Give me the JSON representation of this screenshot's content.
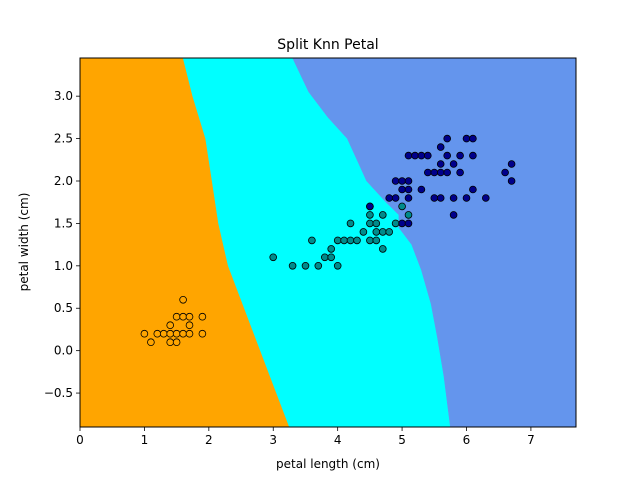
{
  "chart_data": {
    "type": "scatter",
    "title": "Split Knn Petal",
    "xlabel": "petal length (cm)",
    "ylabel": "petal width (cm)",
    "xlim": [
      0,
      7.7
    ],
    "ylim": [
      -0.9,
      3.45
    ],
    "xticks": [
      0,
      1,
      2,
      3,
      4,
      5,
      6,
      7
    ],
    "xtick_labels": [
      "0",
      "1",
      "2",
      "3",
      "4",
      "5",
      "6",
      "7"
    ],
    "yticks": [
      -0.5,
      0.0,
      0.5,
      1.0,
      1.5,
      2.0,
      2.5,
      3.0
    ],
    "ytick_labels": [
      "−0.5",
      "0.0",
      "0.5",
      "1.0",
      "1.5",
      "2.0",
      "2.5",
      "3.0"
    ],
    "grid": false,
    "colors": {
      "region_0": "#ffa500",
      "region_1": "#00ffff",
      "region_2": "#6495ed",
      "point_0": "#ffa500",
      "point_1": "#008b8b",
      "point_2": "#00008b",
      "edge": "#000000"
    },
    "decision_regions": [
      {
        "class_index": 0,
        "polygon": [
          [
            0,
            3.45
          ],
          [
            1.6,
            3.45
          ],
          [
            1.75,
            3.0
          ],
          [
            1.95,
            2.5
          ],
          [
            2.05,
            2.0
          ],
          [
            2.15,
            1.5
          ],
          [
            2.3,
            1.0
          ],
          [
            2.55,
            0.5
          ],
          [
            2.8,
            0.0
          ],
          [
            3.05,
            -0.5
          ],
          [
            3.25,
            -0.9
          ],
          [
            0,
            -0.9
          ]
        ]
      },
      {
        "class_index": 1,
        "polygon": [
          [
            1.6,
            3.45
          ],
          [
            3.3,
            3.45
          ],
          [
            3.55,
            3.05
          ],
          [
            3.85,
            2.75
          ],
          [
            4.15,
            2.5
          ],
          [
            4.3,
            2.25
          ],
          [
            4.45,
            2.0
          ],
          [
            4.75,
            1.75
          ],
          [
            4.95,
            1.6
          ],
          [
            4.95,
            1.45
          ],
          [
            5.15,
            1.25
          ],
          [
            5.3,
            0.95
          ],
          [
            5.45,
            0.55
          ],
          [
            5.55,
            0.15
          ],
          [
            5.65,
            -0.3
          ],
          [
            5.75,
            -0.9
          ],
          [
            3.25,
            -0.9
          ],
          [
            3.05,
            -0.5
          ],
          [
            2.8,
            0.0
          ],
          [
            2.55,
            0.5
          ],
          [
            2.3,
            1.0
          ],
          [
            2.15,
            1.5
          ],
          [
            2.05,
            2.0
          ],
          [
            1.95,
            2.5
          ],
          [
            1.75,
            3.0
          ]
        ]
      },
      {
        "class_index": 2,
        "polygon": [
          [
            3.3,
            3.45
          ],
          [
            7.7,
            3.45
          ],
          [
            7.7,
            -0.9
          ],
          [
            5.75,
            -0.9
          ],
          [
            5.65,
            -0.3
          ],
          [
            5.55,
            0.15
          ],
          [
            5.45,
            0.55
          ],
          [
            5.3,
            0.95
          ],
          [
            5.15,
            1.25
          ],
          [
            4.95,
            1.45
          ],
          [
            4.95,
            1.6
          ],
          [
            4.75,
            1.75
          ],
          [
            4.45,
            2.0
          ],
          [
            4.3,
            2.25
          ],
          [
            4.15,
            2.5
          ],
          [
            3.85,
            2.75
          ],
          [
            3.55,
            3.05
          ]
        ]
      }
    ],
    "series": [
      {
        "class_index": 0,
        "points": [
          [
            1.0,
            0.2
          ],
          [
            1.1,
            0.1
          ],
          [
            1.2,
            0.2
          ],
          [
            1.3,
            0.2
          ],
          [
            1.4,
            0.2
          ],
          [
            1.4,
            0.1
          ],
          [
            1.4,
            0.3
          ],
          [
            1.5,
            0.2
          ],
          [
            1.5,
            0.1
          ],
          [
            1.5,
            0.4
          ],
          [
            1.6,
            0.2
          ],
          [
            1.6,
            0.6
          ],
          [
            1.6,
            0.4
          ],
          [
            1.7,
            0.4
          ],
          [
            1.7,
            0.3
          ],
          [
            1.7,
            0.2
          ],
          [
            1.9,
            0.4
          ],
          [
            1.9,
            0.2
          ]
        ]
      },
      {
        "class_index": 1,
        "points": [
          [
            3.0,
            1.1
          ],
          [
            3.3,
            1.0
          ],
          [
            3.5,
            1.0
          ],
          [
            3.6,
            1.3
          ],
          [
            3.7,
            1.0
          ],
          [
            3.8,
            1.1
          ],
          [
            3.9,
            1.1
          ],
          [
            3.9,
            1.2
          ],
          [
            4.0,
            1.0
          ],
          [
            4.0,
            1.3
          ],
          [
            4.1,
            1.3
          ],
          [
            4.2,
            1.3
          ],
          [
            4.2,
            1.5
          ],
          [
            4.3,
            1.3
          ],
          [
            4.4,
            1.4
          ],
          [
            4.5,
            1.3
          ],
          [
            4.5,
            1.5
          ],
          [
            4.5,
            1.6
          ],
          [
            4.5,
            1.7
          ],
          [
            4.6,
            1.3
          ],
          [
            4.6,
            1.4
          ],
          [
            4.6,
            1.5
          ],
          [
            4.7,
            1.2
          ],
          [
            4.7,
            1.4
          ],
          [
            4.7,
            1.6
          ],
          [
            4.8,
            1.4
          ],
          [
            4.9,
            1.5
          ],
          [
            5.0,
            1.7
          ],
          [
            5.1,
            1.6
          ]
        ]
      },
      {
        "class_index": 2,
        "points": [
          [
            4.5,
            1.7
          ],
          [
            4.8,
            1.8
          ],
          [
            4.9,
            1.8
          ],
          [
            4.9,
            2.0
          ],
          [
            5.0,
            1.5
          ],
          [
            5.0,
            1.9
          ],
          [
            5.0,
            2.0
          ],
          [
            5.1,
            1.5
          ],
          [
            5.1,
            1.8
          ],
          [
            5.1,
            1.9
          ],
          [
            5.1,
            2.0
          ],
          [
            5.1,
            2.3
          ],
          [
            5.2,
            2.3
          ],
          [
            5.3,
            2.3
          ],
          [
            5.3,
            1.9
          ],
          [
            5.4,
            2.1
          ],
          [
            5.4,
            2.3
          ],
          [
            5.5,
            1.8
          ],
          [
            5.5,
            2.1
          ],
          [
            5.6,
            1.8
          ],
          [
            5.6,
            2.1
          ],
          [
            5.6,
            2.2
          ],
          [
            5.6,
            2.4
          ],
          [
            5.7,
            2.1
          ],
          [
            5.7,
            2.3
          ],
          [
            5.7,
            2.5
          ],
          [
            5.8,
            1.6
          ],
          [
            5.8,
            1.8
          ],
          [
            5.8,
            2.2
          ],
          [
            5.9,
            2.1
          ],
          [
            5.9,
            2.3
          ],
          [
            6.0,
            1.8
          ],
          [
            6.0,
            2.5
          ],
          [
            6.1,
            1.9
          ],
          [
            6.1,
            2.3
          ],
          [
            6.1,
            2.5
          ],
          [
            6.3,
            1.8
          ],
          [
            6.6,
            2.1
          ],
          [
            6.7,
            2.0
          ],
          [
            6.7,
            2.2
          ]
        ]
      }
    ]
  }
}
